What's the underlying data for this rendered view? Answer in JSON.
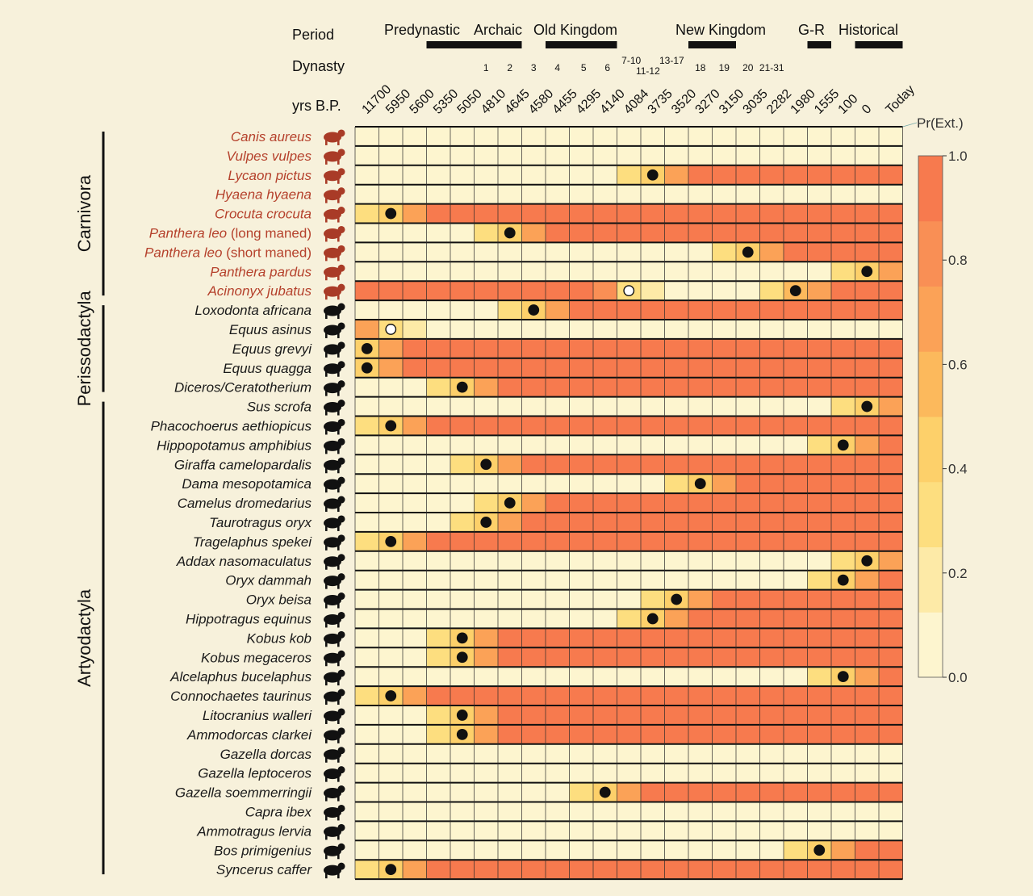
{
  "chart_data": {
    "type": "heatmap",
    "row_headers": {
      "period": "Period",
      "dynasty": "Dynasty",
      "years": "yrs B.P."
    },
    "colorbar": {
      "label": "Pr(Ext.)",
      "min": 0.0,
      "max": 1.0,
      "ticks": [
        "0.0",
        "0.2",
        "0.4",
        "0.6",
        "0.8",
        "1.0"
      ]
    },
    "periods": [
      {
        "name": "Predynastic",
        "from_col": 3,
        "to_col": 5
      },
      {
        "name": "Archaic",
        "from_col": 6,
        "to_col": 6
      },
      {
        "name": "Old Kingdom",
        "from_col": 8,
        "to_col": 10
      },
      {
        "name": "New Kingdom",
        "from_col": 14,
        "to_col": 15
      },
      {
        "name": "G-R",
        "from_col": 19,
        "to_col": 19
      },
      {
        "name": "Historical",
        "from_col": 21,
        "to_col": 22
      }
    ],
    "dynasties": [
      {
        "label": "1",
        "col": 5.5
      },
      {
        "label": "2",
        "col": 6.5
      },
      {
        "label": "3",
        "col": 7.5
      },
      {
        "label": "4",
        "col": 8.5
      },
      {
        "label": "5",
        "col": 9.6
      },
      {
        "label": "6",
        "col": 10.6
      },
      {
        "label": "7-10",
        "col": 11.6,
        "upper": true
      },
      {
        "label": "11-12",
        "col": 12.3
      },
      {
        "label": "13-17",
        "col": 13.3,
        "upper": true
      },
      {
        "label": "18",
        "col": 14.5
      },
      {
        "label": "19",
        "col": 15.5
      },
      {
        "label": "20",
        "col": 16.5
      },
      {
        "label": "21-31",
        "col": 17.5
      }
    ],
    "years": [
      "11700",
      "5950",
      "5600",
      "5350",
      "5050",
      "4810",
      "4645",
      "4580",
      "4455",
      "4295",
      "4140",
      "4084",
      "3735",
      "3520",
      "3270",
      "3150",
      "3035",
      "2282",
      "1980",
      "1555",
      "100",
      "0",
      "Today"
    ],
    "orders": [
      {
        "name": "Carnivora",
        "from_row": 0,
        "to_row": 8
      },
      {
        "name": "Perissodactyla",
        "from_row": 9,
        "to_row": 13
      },
      {
        "name": "Artyodactyla",
        "from_row": 14,
        "to_row": 38
      }
    ],
    "colors": {
      "levels": [
        "#fdf5cf",
        "#fdeaa7",
        "#fdde7f",
        "#fdd06a",
        "#fcb95c",
        "#fba257",
        "#f98f55",
        "#f77a4e"
      ],
      "carnivore_text": "#b5412c",
      "other_text": "#1a1a1a",
      "background": "#f7f1db"
    },
    "species": [
      {
        "name": "Canis aureus",
        "highlight": true,
        "icon": "fox-icon",
        "transition": null,
        "dot": null
      },
      {
        "name": "Vulpes vulpes",
        "highlight": true,
        "icon": "fox-icon",
        "transition": null,
        "dot": null
      },
      {
        "name": "Lycaon pictus",
        "highlight": true,
        "icon": "wild-dog-icon",
        "transition": 11,
        "dot": {
          "col": 12,
          "open": false
        }
      },
      {
        "name": "Hyaena hyaena",
        "highlight": true,
        "icon": "hyena-icon",
        "transition": null,
        "dot": null
      },
      {
        "name": "Crocuta crocuta",
        "highlight": true,
        "icon": "hyena-icon",
        "transition": 0,
        "dot": {
          "col": 1,
          "open": false
        }
      },
      {
        "name": "Panthera leo",
        "suffix": " (long maned)",
        "highlight": true,
        "icon": "lion-icon",
        "transition": 5,
        "dot": {
          "col": 6,
          "open": false
        }
      },
      {
        "name": "Panthera leo",
        "suffix": " (short maned)",
        "highlight": true,
        "icon": "lion-icon",
        "transition": 15,
        "dot": {
          "col": 16,
          "open": false
        }
      },
      {
        "name": "Panthera pardus",
        "highlight": true,
        "icon": "leopard-icon",
        "transition": 20,
        "dot": {
          "col": 21,
          "open": false
        }
      },
      {
        "name": "Acinonyx jubatus",
        "highlight": true,
        "icon": "cheetah-icon",
        "profile": "cheetah",
        "dot": {
          "col": 18,
          "open": false
        },
        "dot2": {
          "col": 11,
          "open": true
        }
      },
      {
        "name": "Loxodonta africana",
        "highlight": false,
        "icon": "elephant-icon",
        "transition": 6,
        "dot": {
          "col": 7,
          "open": false
        }
      },
      {
        "name": "Equus asinus",
        "highlight": false,
        "icon": "donkey-icon",
        "profile": "asinus",
        "dot": {
          "col": 1,
          "open": true
        }
      },
      {
        "name": "Equus grevyi",
        "highlight": false,
        "icon": "zebra-icon",
        "transition": -1,
        "dot": {
          "col": 0,
          "open": false
        }
      },
      {
        "name": "Equus quagga",
        "highlight": false,
        "icon": "zebra-icon",
        "transition": -1,
        "dot": {
          "col": 0,
          "open": false
        }
      },
      {
        "name": "Diceros/Ceratotherium",
        "highlight": false,
        "icon": "rhino-icon",
        "transition": 3,
        "dot": {
          "col": 4,
          "open": false
        }
      },
      {
        "name": "Sus scrofa",
        "highlight": false,
        "icon": "boar-icon",
        "transition": 20,
        "dot": {
          "col": 21,
          "open": false
        }
      },
      {
        "name": "Phacochoerus aethiopicus",
        "highlight": false,
        "icon": "warthog-icon",
        "transition": 0,
        "dot": {
          "col": 1,
          "open": false
        }
      },
      {
        "name": "Hippopotamus amphibius",
        "highlight": false,
        "icon": "hippo-icon",
        "transition": 19,
        "dot": {
          "col": 20,
          "open": false
        }
      },
      {
        "name": "Giraffa camelopardalis",
        "highlight": false,
        "icon": "giraffe-icon",
        "transition": 4,
        "dot": {
          "col": 5,
          "open": false
        }
      },
      {
        "name": "Dama mesopotamica",
        "highlight": false,
        "icon": "deer-icon",
        "transition": 13,
        "dot": {
          "col": 14,
          "open": false
        }
      },
      {
        "name": "Camelus dromedarius",
        "highlight": false,
        "icon": "camel-icon",
        "transition": 5,
        "dot": {
          "col": 6,
          "open": false
        }
      },
      {
        "name": "Taurotragus oryx",
        "highlight": false,
        "icon": "eland-icon",
        "transition": 4,
        "dot": {
          "col": 5,
          "open": false
        }
      },
      {
        "name": "Tragelaphus spekei",
        "highlight": false,
        "icon": "sitatunga-icon",
        "transition": 0,
        "dot": {
          "col": 1,
          "open": false
        }
      },
      {
        "name": "Addax nasomaculatus",
        "highlight": false,
        "icon": "addax-icon",
        "transition": 20,
        "dot": {
          "col": 21,
          "open": false
        }
      },
      {
        "name": "Oryx dammah",
        "highlight": false,
        "icon": "oryx-icon",
        "transition": 19,
        "dot": {
          "col": 20,
          "open": false
        }
      },
      {
        "name": "Oryx beisa",
        "highlight": false,
        "icon": "oryx-icon",
        "transition": 12,
        "dot": {
          "col": 13,
          "open": false
        }
      },
      {
        "name": "Hippotragus equinus",
        "highlight": false,
        "icon": "roan-antelope-icon",
        "transition": 11,
        "dot": {
          "col": 12,
          "open": false
        }
      },
      {
        "name": "Kobus kob",
        "highlight": false,
        "icon": "kob-icon",
        "transition": 3,
        "dot": {
          "col": 4,
          "open": false
        }
      },
      {
        "name": "Kobus megaceros",
        "highlight": false,
        "icon": "lechwe-icon",
        "transition": 3,
        "dot": {
          "col": 4,
          "open": false
        }
      },
      {
        "name": "Alcelaphus bucelaphus",
        "highlight": false,
        "icon": "hartebeest-icon",
        "transition": 19,
        "dot": {
          "col": 20,
          "open": false
        }
      },
      {
        "name": "Connochaetes taurinus",
        "highlight": false,
        "icon": "wildebeest-icon",
        "transition": 0,
        "dot": {
          "col": 1,
          "open": false
        }
      },
      {
        "name": "Litocranius walleri",
        "highlight": false,
        "icon": "gerenuk-icon",
        "transition": 3,
        "dot": {
          "col": 4,
          "open": false
        }
      },
      {
        "name": "Ammodorcas clarkei",
        "highlight": false,
        "icon": "dibatag-icon",
        "transition": 3,
        "dot": {
          "col": 4,
          "open": false
        }
      },
      {
        "name": "Gazella dorcas",
        "highlight": false,
        "icon": "gazelle-icon",
        "transition": null,
        "dot": null
      },
      {
        "name": "Gazella leptoceros",
        "highlight": false,
        "icon": "gazelle-icon",
        "transition": null,
        "dot": null
      },
      {
        "name": "Gazella soemmerringii",
        "highlight": false,
        "icon": "gazelle-icon",
        "transition": 9,
        "dot": {
          "col": 10,
          "open": false
        }
      },
      {
        "name": "Capra ibex",
        "highlight": false,
        "icon": "ibex-icon",
        "transition": null,
        "dot": null
      },
      {
        "name": "Ammotragus lervia",
        "highlight": false,
        "icon": "barbary-sheep-icon",
        "transition": null,
        "dot": null
      },
      {
        "name": "Bos primigenius",
        "highlight": false,
        "icon": "aurochs-icon",
        "transition": 18,
        "dot": {
          "col": 19,
          "open": false
        }
      },
      {
        "name": "Syncerus caffer",
        "highlight": false,
        "icon": "buffalo-icon",
        "transition": 0,
        "dot": {
          "col": 1,
          "open": false
        }
      }
    ]
  }
}
